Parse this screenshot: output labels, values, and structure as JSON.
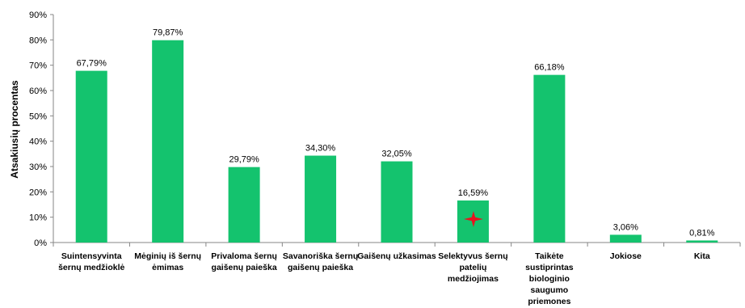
{
  "chart_data": {
    "type": "bar",
    "ylabel": "Atsakiusių procentas",
    "xlabel": "",
    "title": "",
    "ylim": [
      0,
      90
    ],
    "ytick_labels": [
      "0%",
      "10%",
      "20%",
      "30%",
      "40%",
      "50%",
      "60%",
      "70%",
      "80%",
      "90%"
    ],
    "grid": false,
    "bar_color": "#14c36e",
    "categories": [
      [
        "Suintensyvinta",
        "šernų medžioklė"
      ],
      [
        "Mėginių iš šernų",
        "ėmimas"
      ],
      [
        "Privaloma šernų",
        "gaišenų paieška"
      ],
      [
        "Savanoriška šernų",
        "gaišenų paieška"
      ],
      [
        "Gaišenų užkasimas"
      ],
      [
        "Selektyvus šernų",
        "patelių",
        "medžiojimas"
      ],
      [
        "Taikėte",
        "sustiprintas",
        "biologinio",
        "saugumo",
        "priemones"
      ],
      [
        "Jokiose"
      ],
      [
        "Kita"
      ]
    ],
    "values": [
      67.79,
      79.87,
      29.79,
      34.3,
      32.05,
      16.59,
      66.18,
      3.06,
      0.81
    ],
    "data_labels": [
      "67,79%",
      "79,87%",
      "29,79%",
      "34,30%",
      "32,05%",
      "16,59%",
      "66,18%",
      "3,06%",
      "0,81%"
    ]
  }
}
